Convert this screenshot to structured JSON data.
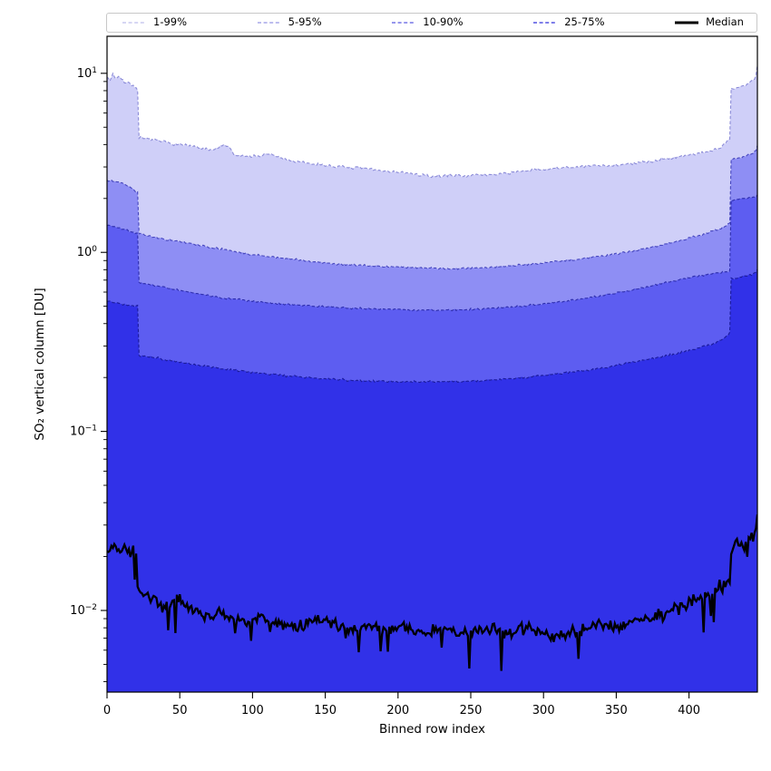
{
  "figure": {
    "background": "#ffffff"
  },
  "chart_data": {
    "type": "area",
    "subtype": "percentile-band-plot",
    "title": "",
    "xlabel": "Binned row index",
    "ylabel": "SO₂ vertical column [DU]",
    "grid": false,
    "legend_position": "top, expanded across plot width",
    "legend": {
      "entries": [
        {
          "label": "1-99%",
          "swatch_color": "#c9c9ef",
          "style": "dashed"
        },
        {
          "label": "5-95%",
          "swatch_color": "#a6a6e9",
          "style": "dashed"
        },
        {
          "label": "10-90%",
          "swatch_color": "#7575e5",
          "style": "dashed"
        },
        {
          "label": "25-75%",
          "swatch_color": "#5252e2",
          "style": "dashed"
        },
        {
          "label": "Median",
          "swatch_color": "#000000",
          "style": "solid"
        }
      ]
    },
    "axes": {
      "x": {
        "label": "Binned row index",
        "min": 0,
        "max": 447,
        "major_ticks": [
          0,
          50,
          100,
          150,
          200,
          250,
          300,
          350,
          400
        ],
        "scale": "linear"
      },
      "y": {
        "label": "SO₂ vertical column [DU]",
        "scale": "log",
        "min": 0.0035,
        "max": 16.1,
        "major_ticks": [
          {
            "value": 10,
            "label": "10^1"
          },
          {
            "value": 1,
            "label": "10^0"
          },
          {
            "value": 0.1,
            "label": "10^-1"
          },
          {
            "value": 0.01,
            "label": "10^-2"
          }
        ],
        "minor_ticks": "2-9 multiples of each decade"
      }
    },
    "series": [
      {
        "name": "p99_upper",
        "legend_label": "1-99%",
        "role": "band-upper-boundary",
        "percentile": 99,
        "fill_color": "#cfcff8",
        "edge_color": "#8c8cd8",
        "dashed": true,
        "noise_log10": 0.012,
        "seed": 7,
        "keypoints": [
          [
            0,
            9.6
          ],
          [
            2,
            9.1
          ],
          [
            4,
            10.0
          ],
          [
            6,
            9.3
          ],
          [
            8,
            9.7
          ],
          [
            10,
            9.2
          ],
          [
            12,
            8.9
          ],
          [
            14,
            9.0
          ],
          [
            16,
            8.7
          ],
          [
            18,
            8.6
          ],
          [
            20,
            8.2
          ],
          [
            21,
            7.9
          ],
          [
            22,
            4.35
          ],
          [
            28,
            4.3
          ],
          [
            35,
            4.2
          ],
          [
            45,
            4.05
          ],
          [
            55,
            3.95
          ],
          [
            65,
            3.8
          ],
          [
            72,
            3.7
          ],
          [
            78,
            3.9
          ],
          [
            83,
            3.95
          ],
          [
            88,
            3.5
          ],
          [
            95,
            3.45
          ],
          [
            105,
            3.45
          ],
          [
            112,
            3.55
          ],
          [
            120,
            3.35
          ],
          [
            130,
            3.2
          ],
          [
            145,
            3.1
          ],
          [
            160,
            3.0
          ],
          [
            175,
            2.95
          ],
          [
            190,
            2.85
          ],
          [
            205,
            2.78
          ],
          [
            215,
            2.7
          ],
          [
            225,
            2.65
          ],
          [
            235,
            2.7
          ],
          [
            245,
            2.68
          ],
          [
            255,
            2.7
          ],
          [
            265,
            2.72
          ],
          [
            275,
            2.78
          ],
          [
            285,
            2.82
          ],
          [
            295,
            2.9
          ],
          [
            305,
            2.92
          ],
          [
            315,
            2.98
          ],
          [
            325,
            3.0
          ],
          [
            335,
            3.05
          ],
          [
            345,
            3.05
          ],
          [
            355,
            3.1
          ],
          [
            365,
            3.15
          ],
          [
            375,
            3.25
          ],
          [
            385,
            3.35
          ],
          [
            395,
            3.45
          ],
          [
            405,
            3.55
          ],
          [
            415,
            3.7
          ],
          [
            421,
            3.8
          ],
          [
            427,
            4.2
          ],
          [
            428,
            4.3
          ],
          [
            429,
            8.2
          ],
          [
            433,
            8.3
          ],
          [
            437,
            8.5
          ],
          [
            441,
            8.8
          ],
          [
            444,
            9.2
          ],
          [
            446,
            9.6
          ],
          [
            447,
            11.3
          ]
        ]
      },
      {
        "name": "p95_upper",
        "legend_label": "5-95%",
        "role": "band-upper-boundary",
        "percentile": 95,
        "fill_color": "#8e8ef4",
        "edge_color": "#4646be",
        "dashed": true,
        "noise_log10": 0.008,
        "seed": 13,
        "keypoints": [
          [
            0,
            2.55
          ],
          [
            4,
            2.5
          ],
          [
            8,
            2.48
          ],
          [
            12,
            2.42
          ],
          [
            16,
            2.32
          ],
          [
            20,
            2.18
          ],
          [
            21,
            2.15
          ],
          [
            22,
            1.27
          ],
          [
            30,
            1.23
          ],
          [
            40,
            1.18
          ],
          [
            55,
            1.13
          ],
          [
            70,
            1.07
          ],
          [
            85,
            1.02
          ],
          [
            100,
            0.97
          ],
          [
            115,
            0.94
          ],
          [
            130,
            0.91
          ],
          [
            145,
            0.88
          ],
          [
            160,
            0.86
          ],
          [
            175,
            0.845
          ],
          [
            190,
            0.835
          ],
          [
            205,
            0.825
          ],
          [
            220,
            0.815
          ],
          [
            235,
            0.81
          ],
          [
            250,
            0.815
          ],
          [
            265,
            0.825
          ],
          [
            280,
            0.845
          ],
          [
            295,
            0.865
          ],
          [
            310,
            0.89
          ],
          [
            325,
            0.92
          ],
          [
            340,
            0.955
          ],
          [
            355,
            0.995
          ],
          [
            370,
            1.05
          ],
          [
            385,
            1.12
          ],
          [
            400,
            1.2
          ],
          [
            412,
            1.28
          ],
          [
            422,
            1.36
          ],
          [
            427,
            1.44
          ],
          [
            428,
            1.46
          ],
          [
            429,
            3.3
          ],
          [
            434,
            3.35
          ],
          [
            439,
            3.45
          ],
          [
            443,
            3.55
          ],
          [
            446,
            3.7
          ],
          [
            447,
            3.95
          ]
        ]
      },
      {
        "name": "p90_upper",
        "legend_label": "10-90%",
        "role": "band-upper-boundary",
        "percentile": 90,
        "fill_color": "#5d5df1",
        "edge_color": "#2e2eae",
        "dashed": true,
        "noise_log10": 0.008,
        "seed": 21,
        "keypoints": [
          [
            0,
            1.42
          ],
          [
            4,
            1.4
          ],
          [
            8,
            1.37
          ],
          [
            12,
            1.34
          ],
          [
            16,
            1.31
          ],
          [
            20,
            1.28
          ],
          [
            21,
            1.27
          ],
          [
            22,
            0.68
          ],
          [
            30,
            0.66
          ],
          [
            45,
            0.625
          ],
          [
            60,
            0.59
          ],
          [
            75,
            0.565
          ],
          [
            90,
            0.545
          ],
          [
            105,
            0.53
          ],
          [
            120,
            0.515
          ],
          [
            135,
            0.505
          ],
          [
            150,
            0.497
          ],
          [
            165,
            0.49
          ],
          [
            180,
            0.484
          ],
          [
            195,
            0.48
          ],
          [
            210,
            0.477
          ],
          [
            225,
            0.475
          ],
          [
            240,
            0.477
          ],
          [
            255,
            0.481
          ],
          [
            270,
            0.489
          ],
          [
            285,
            0.5
          ],
          [
            300,
            0.515
          ],
          [
            315,
            0.532
          ],
          [
            330,
            0.555
          ],
          [
            345,
            0.582
          ],
          [
            360,
            0.615
          ],
          [
            375,
            0.652
          ],
          [
            390,
            0.693
          ],
          [
            405,
            0.735
          ],
          [
            417,
            0.762
          ],
          [
            427,
            0.78
          ],
          [
            428,
            0.79
          ],
          [
            429,
            1.95
          ],
          [
            434,
            1.98
          ],
          [
            439,
            2.0
          ],
          [
            443,
            2.03
          ],
          [
            446,
            2.06
          ],
          [
            447,
            2.1
          ]
        ]
      },
      {
        "name": "p75_upper",
        "legend_label": "25-75%",
        "role": "band-upper-boundary",
        "percentile": 75,
        "fill_color": "#3131e8",
        "edge_color": "#1b1b9b",
        "dashed": true,
        "noise_log10": 0.009,
        "seed": 35,
        "keypoints": [
          [
            0,
            0.535
          ],
          [
            5,
            0.525
          ],
          [
            10,
            0.515
          ],
          [
            15,
            0.508
          ],
          [
            20,
            0.502
          ],
          [
            21,
            0.5
          ],
          [
            22,
            0.265
          ],
          [
            32,
            0.258
          ],
          [
            47,
            0.246
          ],
          [
            62,
            0.235
          ],
          [
            77,
            0.226
          ],
          [
            92,
            0.218
          ],
          [
            107,
            0.211
          ],
          [
            122,
            0.205
          ],
          [
            137,
            0.2
          ],
          [
            152,
            0.196
          ],
          [
            167,
            0.193
          ],
          [
            182,
            0.191
          ],
          [
            197,
            0.19
          ],
          [
            212,
            0.189
          ],
          [
            227,
            0.189
          ],
          [
            242,
            0.19
          ],
          [
            257,
            0.192
          ],
          [
            272,
            0.196
          ],
          [
            287,
            0.2
          ],
          [
            302,
            0.206
          ],
          [
            317,
            0.213
          ],
          [
            332,
            0.221
          ],
          [
            347,
            0.231
          ],
          [
            362,
            0.243
          ],
          [
            377,
            0.257
          ],
          [
            392,
            0.273
          ],
          [
            407,
            0.293
          ],
          [
            417,
            0.31
          ],
          [
            424,
            0.33
          ],
          [
            427,
            0.35
          ],
          [
            428,
            0.36
          ],
          [
            429,
            0.71
          ],
          [
            434,
            0.72
          ],
          [
            439,
            0.74
          ],
          [
            443,
            0.755
          ],
          [
            446,
            0.77
          ],
          [
            447,
            0.8
          ]
        ]
      },
      {
        "name": "median",
        "legend_label": "Median",
        "role": "line",
        "percentile": 50,
        "fill_color": null,
        "edge_color": "#000000",
        "dashed": false,
        "line_width": 2.3,
        "noise_log10": 0.05,
        "spike_chance": 0.05,
        "spike_depth_log10": 0.22,
        "seed": 49,
        "keypoints": [
          [
            0,
            0.021
          ],
          [
            3,
            0.0235
          ],
          [
            6,
            0.022
          ],
          [
            9,
            0.0215
          ],
          [
            12,
            0.0225
          ],
          [
            15,
            0.021
          ],
          [
            18,
            0.0215
          ],
          [
            20,
            0.021
          ],
          [
            21,
            0.0125
          ],
          [
            26,
            0.0122
          ],
          [
            32,
            0.0115
          ],
          [
            38,
            0.0102
          ],
          [
            44,
            0.0112
          ],
          [
            50,
            0.0118
          ],
          [
            56,
            0.0102
          ],
          [
            62,
            0.0098
          ],
          [
            68,
            0.0093
          ],
          [
            75,
            0.0096
          ],
          [
            82,
            0.0094
          ],
          [
            90,
            0.0089
          ],
          [
            98,
            0.0086
          ],
          [
            106,
            0.0091
          ],
          [
            114,
            0.0086
          ],
          [
            122,
            0.0083
          ],
          [
            130,
            0.0079
          ],
          [
            138,
            0.0085
          ],
          [
            146,
            0.0089
          ],
          [
            154,
            0.0085
          ],
          [
            162,
            0.0082
          ],
          [
            170,
            0.0079
          ],
          [
            178,
            0.0084
          ],
          [
            186,
            0.008
          ],
          [
            194,
            0.0079
          ],
          [
            202,
            0.0081
          ],
          [
            210,
            0.0077
          ],
          [
            218,
            0.0074
          ],
          [
            226,
            0.0079
          ],
          [
            234,
            0.0078
          ],
          [
            242,
            0.0074
          ],
          [
            250,
            0.0076
          ],
          [
            258,
            0.0078
          ],
          [
            266,
            0.008
          ],
          [
            274,
            0.0075
          ],
          [
            282,
            0.0077
          ],
          [
            290,
            0.008
          ],
          [
            298,
            0.0077
          ],
          [
            306,
            0.0071
          ],
          [
            314,
            0.0074
          ],
          [
            322,
            0.0076
          ],
          [
            330,
            0.008
          ],
          [
            338,
            0.0084
          ],
          [
            346,
            0.008
          ],
          [
            354,
            0.0084
          ],
          [
            362,
            0.0088
          ],
          [
            370,
            0.009
          ],
          [
            378,
            0.0094
          ],
          [
            386,
            0.0099
          ],
          [
            394,
            0.0105
          ],
          [
            402,
            0.0112
          ],
          [
            410,
            0.0119
          ],
          [
            418,
            0.0128
          ],
          [
            424,
            0.0138
          ],
          [
            428,
            0.0148
          ],
          [
            429,
            0.021
          ],
          [
            432,
            0.023
          ],
          [
            435,
            0.0245
          ],
          [
            438,
            0.022
          ],
          [
            441,
            0.0255
          ],
          [
            444,
            0.0248
          ],
          [
            446,
            0.026
          ],
          [
            447,
            0.034
          ]
        ]
      }
    ]
  }
}
